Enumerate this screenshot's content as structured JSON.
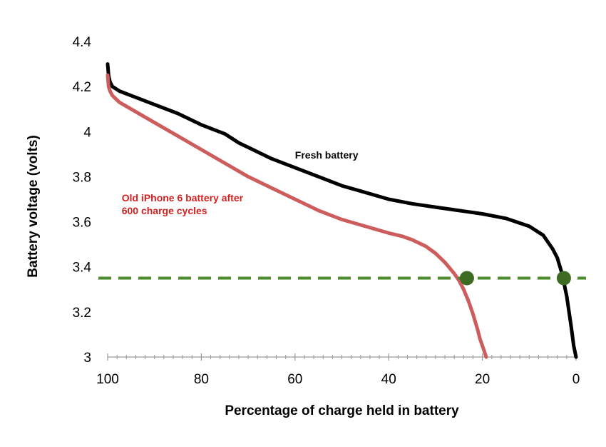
{
  "chart_data": {
    "type": "line",
    "title": "",
    "xlabel": "Percentage of charge held in battery",
    "ylabel": "Battery voltage (volts)",
    "xlim": [
      100,
      0
    ],
    "ylim": [
      3,
      4.4
    ],
    "x_ticks": [
      100,
      80,
      60,
      40,
      20,
      0
    ],
    "y_ticks": [
      3,
      3.2,
      3.4,
      3.6,
      3.8,
      4,
      4.2,
      4.4
    ],
    "x_tick_labels": [
      "100",
      "80",
      "60",
      "40",
      "20",
      "0"
    ],
    "y_tick_labels": [
      "3",
      "3.2",
      "3.4",
      "3.6",
      "3.8",
      "4",
      "4.2",
      "4.4"
    ],
    "grid": false,
    "series": [
      {
        "name": "Fresh battery",
        "color": "#000000",
        "x": [
          100,
          99.8,
          99.5,
          99,
          97.5,
          95,
          90,
          85,
          80,
          75,
          72,
          70,
          65,
          60,
          55,
          50,
          45,
          40,
          35,
          30,
          25,
          20,
          15,
          10,
          7,
          5,
          4,
          3,
          2,
          1,
          0.5,
          0
        ],
        "y": [
          4.3,
          4.25,
          4.22,
          4.2,
          4.18,
          4.16,
          4.12,
          4.08,
          4.03,
          3.99,
          3.95,
          3.93,
          3.88,
          3.84,
          3.8,
          3.76,
          3.73,
          3.7,
          3.68,
          3.665,
          3.65,
          3.635,
          3.615,
          3.58,
          3.54,
          3.48,
          3.44,
          3.37,
          3.27,
          3.13,
          3.05,
          3.0
        ]
      },
      {
        "name": "Old iPhone 6 battery after 600 charge cycles",
        "color": "#cd5c5c",
        "x": [
          100,
          99.8,
          99.5,
          99,
          97.5,
          95,
          90,
          85,
          80,
          75,
          70,
          65,
          60,
          55,
          50,
          45,
          40,
          37,
          35,
          32,
          30,
          28,
          26,
          25,
          24,
          23,
          22,
          21,
          20.5,
          20,
          19.5,
          19.2
        ],
        "y": [
          4.25,
          4.2,
          4.18,
          4.16,
          4.13,
          4.1,
          4.04,
          3.98,
          3.92,
          3.86,
          3.8,
          3.75,
          3.7,
          3.65,
          3.61,
          3.58,
          3.55,
          3.535,
          3.52,
          3.49,
          3.46,
          3.42,
          3.37,
          3.34,
          3.3,
          3.25,
          3.19,
          3.12,
          3.08,
          3.05,
          3.02,
          3.0
        ]
      }
    ],
    "threshold": {
      "y": 3.35,
      "color": "#4a8a2a",
      "style": "dashed"
    },
    "markers": [
      {
        "x": 23.3,
        "y": 3.35,
        "color": "#3d6b22"
      },
      {
        "x": 2.6,
        "y": 3.35,
        "color": "#3d6b22"
      }
    ],
    "annotations": [
      {
        "text_lines": [
          "Fresh battery"
        ],
        "x": 60,
        "y": 3.88,
        "color": "#000000"
      },
      {
        "text_lines": [
          "Old iPhone 6 battery after",
          "600 charge cycles"
        ],
        "x": 97,
        "y": 3.69,
        "color": "#d62020"
      }
    ]
  }
}
